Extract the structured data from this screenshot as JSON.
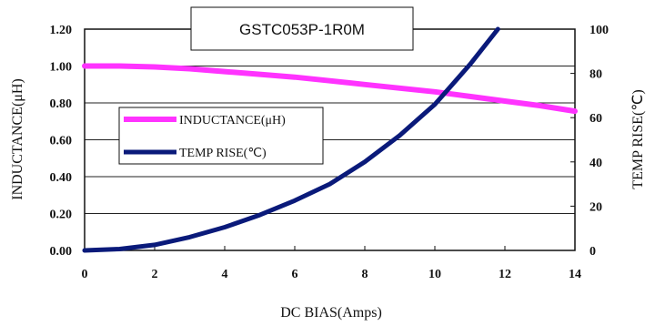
{
  "chart_data": {
    "type": "line",
    "title": "GSTC053P-1R0M",
    "xlabel": "DC BIAS(Amps)",
    "ylabel_left": "INDUCTANCE(μH)",
    "ylabel_right": "TEMP RISE(℃)",
    "xlim": [
      0,
      14
    ],
    "ylim_left": [
      0,
      1.2
    ],
    "ylim_right": [
      0,
      100
    ],
    "x_ticks": [
      "0",
      "2",
      "4",
      "6",
      "8",
      "10",
      "12",
      "14"
    ],
    "y_ticks_left": [
      "0.00",
      "0.20",
      "0.40",
      "0.60",
      "0.80",
      "1.00",
      "1.20"
    ],
    "y_ticks_right": [
      "0",
      "20",
      "40",
      "60",
      "80",
      "100"
    ],
    "grid": "horizontal",
    "legend_position": "left-middle",
    "series": [
      {
        "name": "INDUCTANCE(μH)",
        "axis": "left",
        "color": "#ff33ff",
        "x": [
          0,
          1,
          2,
          3,
          4,
          5,
          6,
          7,
          8,
          9,
          10,
          11,
          12,
          13,
          14
        ],
        "values": [
          1.0,
          1.0,
          0.995,
          0.985,
          0.97,
          0.955,
          0.94,
          0.92,
          0.9,
          0.88,
          0.86,
          0.835,
          0.81,
          0.785,
          0.755
        ]
      },
      {
        "name": "TEMP RISE(℃)",
        "axis": "right",
        "color": "#0a1a7a",
        "x": [
          0,
          1,
          2,
          3,
          4,
          5,
          6,
          7,
          8,
          9,
          10,
          11,
          11.8
        ],
        "values": [
          0,
          0.6,
          2.5,
          6,
          10.5,
          16,
          22.5,
          30,
          40,
          52,
          66,
          84,
          100
        ]
      }
    ]
  }
}
